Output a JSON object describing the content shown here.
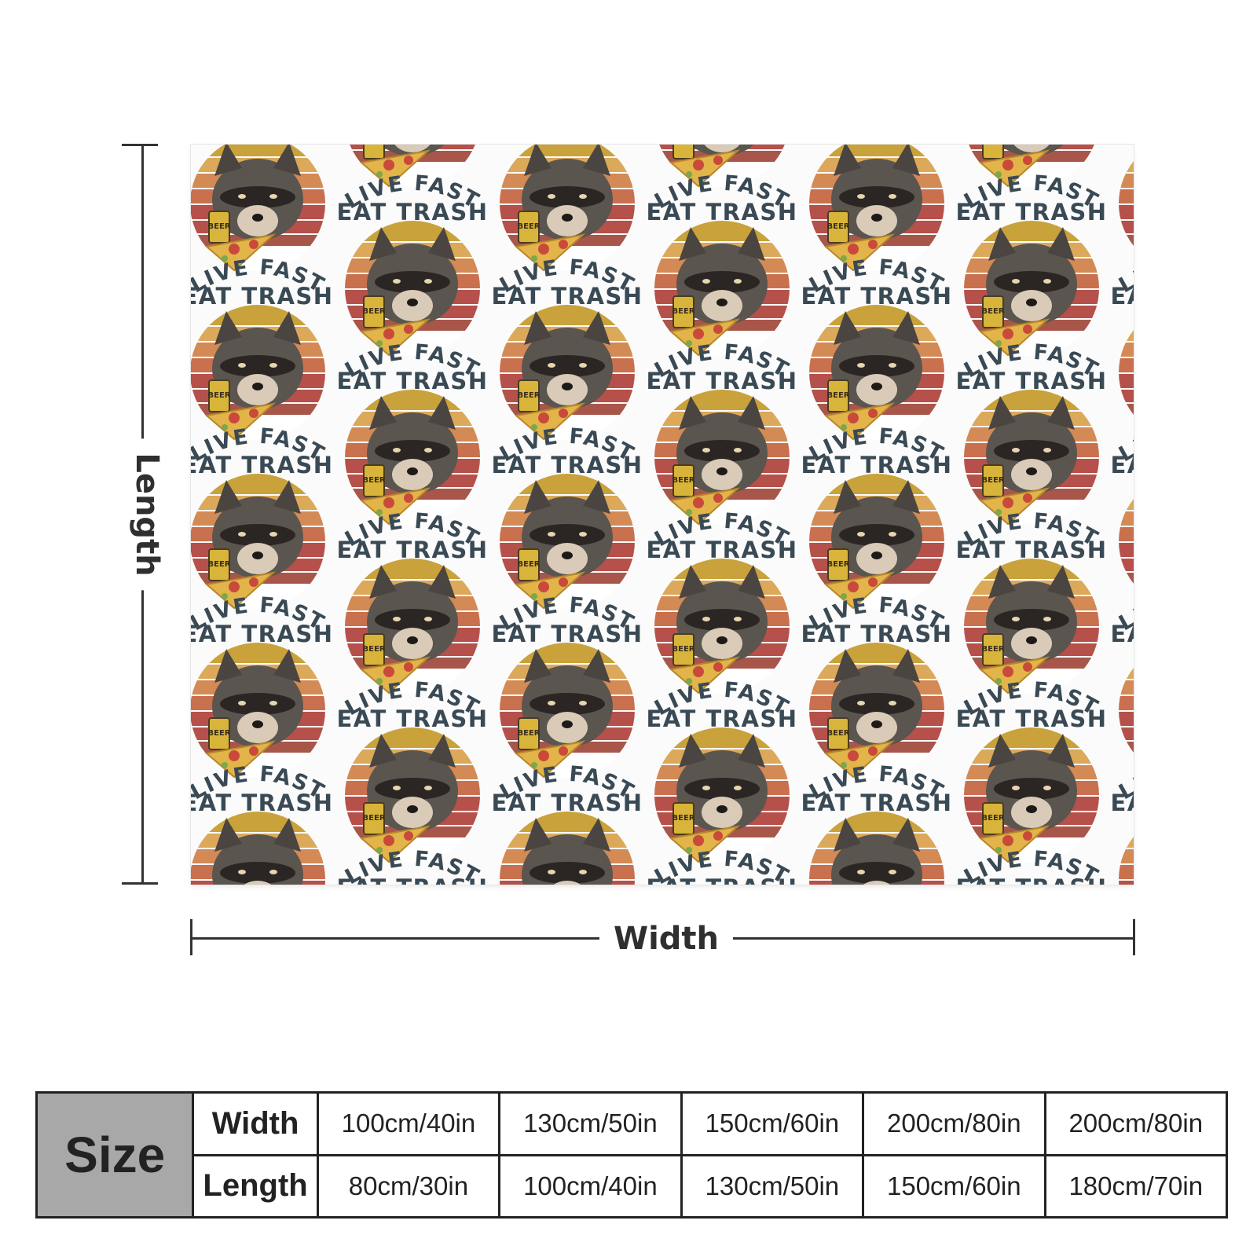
{
  "product": {
    "pattern_text_top": "LIVE FAST",
    "pattern_text_bottom": "EAT TRASH",
    "can_label": "BEER",
    "colors": {
      "text": "#3a4a55",
      "sun_top": "#c9a23c",
      "sun_mid": "#d38a55",
      "sun_bottom": "#b5514a",
      "raccoon": "#55504c",
      "pizza": "#e2b44a"
    }
  },
  "dimensions": {
    "length_label": "Length",
    "width_label": "Width"
  },
  "size_table": {
    "header": "Size",
    "rows": [
      {
        "label": "Width",
        "values": [
          "100cm/40in",
          "130cm/50in",
          "150cm/60in",
          "200cm/80in",
          "200cm/80in"
        ]
      },
      {
        "label": "Length",
        "values": [
          "80cm/30in",
          "100cm/40in",
          "130cm/50in",
          "150cm/60in",
          "180cm/70in"
        ]
      }
    ]
  }
}
